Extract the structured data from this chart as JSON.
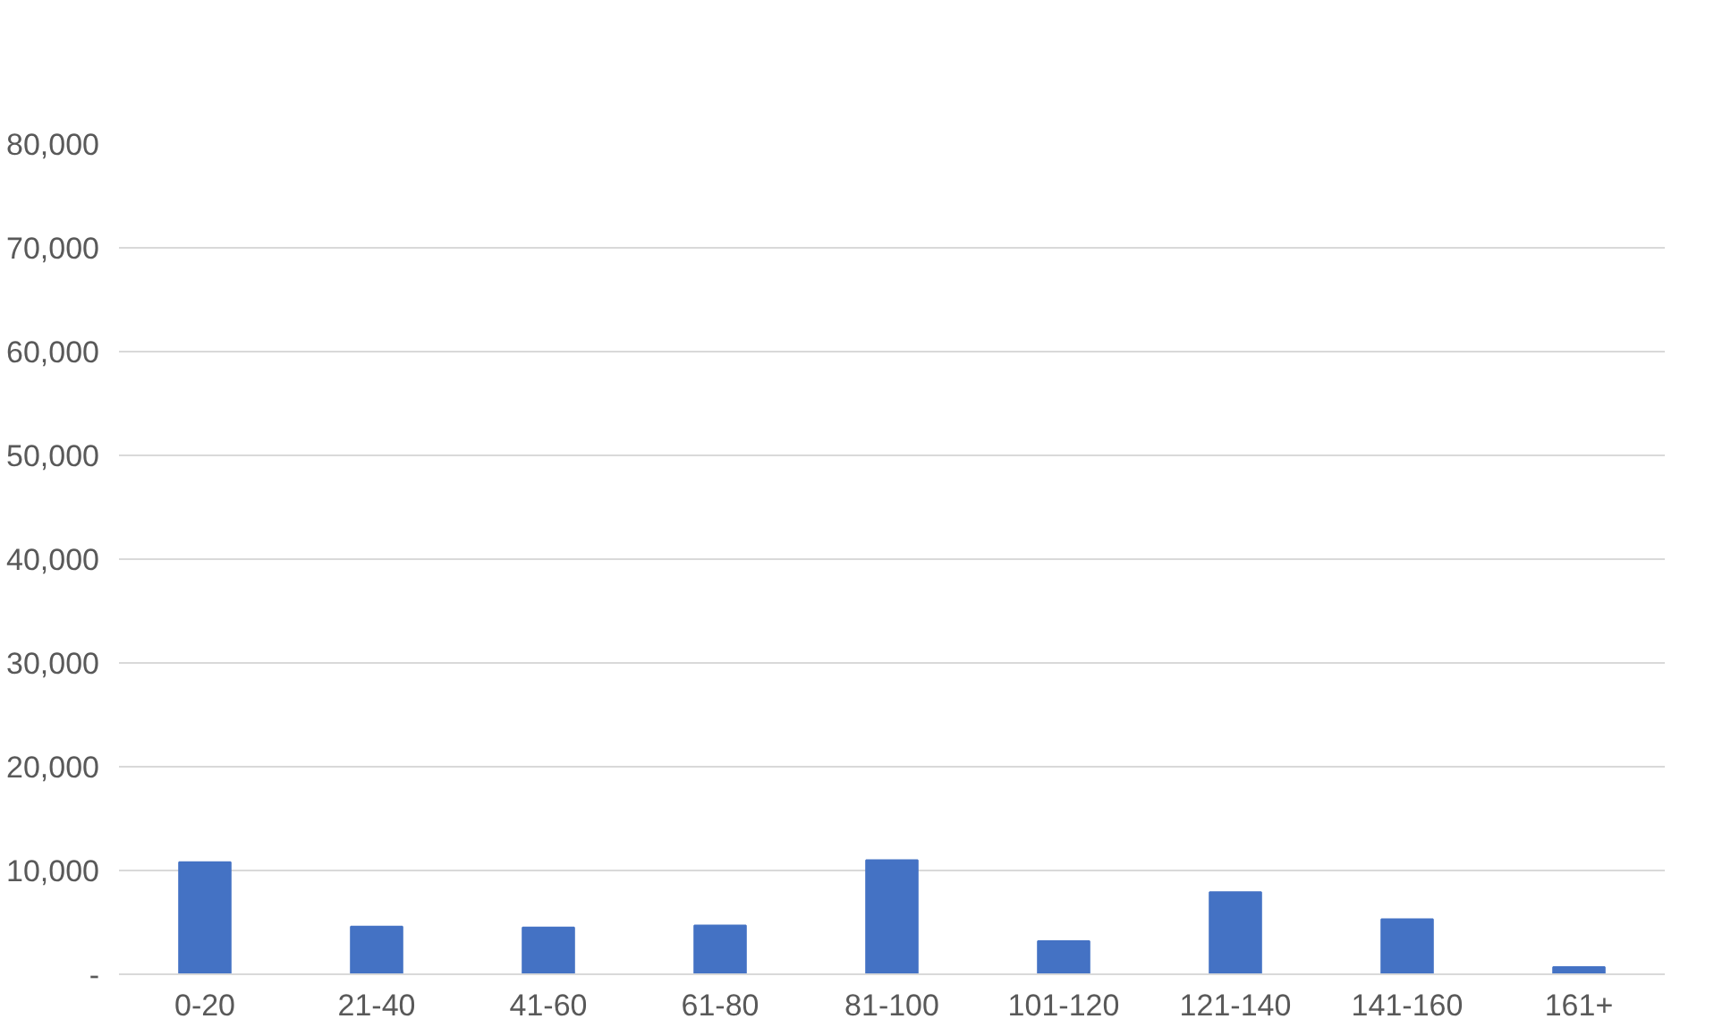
{
  "chart_data": {
    "type": "bar",
    "categories": [
      "0-20",
      "21-40",
      "41-60",
      "61-80",
      "81-100",
      "101-120",
      "121-140",
      "141-160",
      "161+"
    ],
    "values": [
      10800,
      4600,
      4500,
      4700,
      11000,
      3200,
      7900,
      5300,
      700
    ],
    "color": "#4472c4",
    "ylim": [
      0,
      80000
    ],
    "yticks": [
      {
        "value": 0,
        "label": "-"
      },
      {
        "value": 10000,
        "label": "10,000"
      },
      {
        "value": 20000,
        "label": "20,000"
      },
      {
        "value": 30000,
        "label": "30,000"
      },
      {
        "value": 40000,
        "label": "40,000"
      },
      {
        "value": 50000,
        "label": "50,000"
      },
      {
        "value": 60000,
        "label": "60,000"
      },
      {
        "value": 70000,
        "label": "70,000"
      },
      {
        "value": 80000,
        "label": "80,000"
      }
    ],
    "grid": "y"
  }
}
